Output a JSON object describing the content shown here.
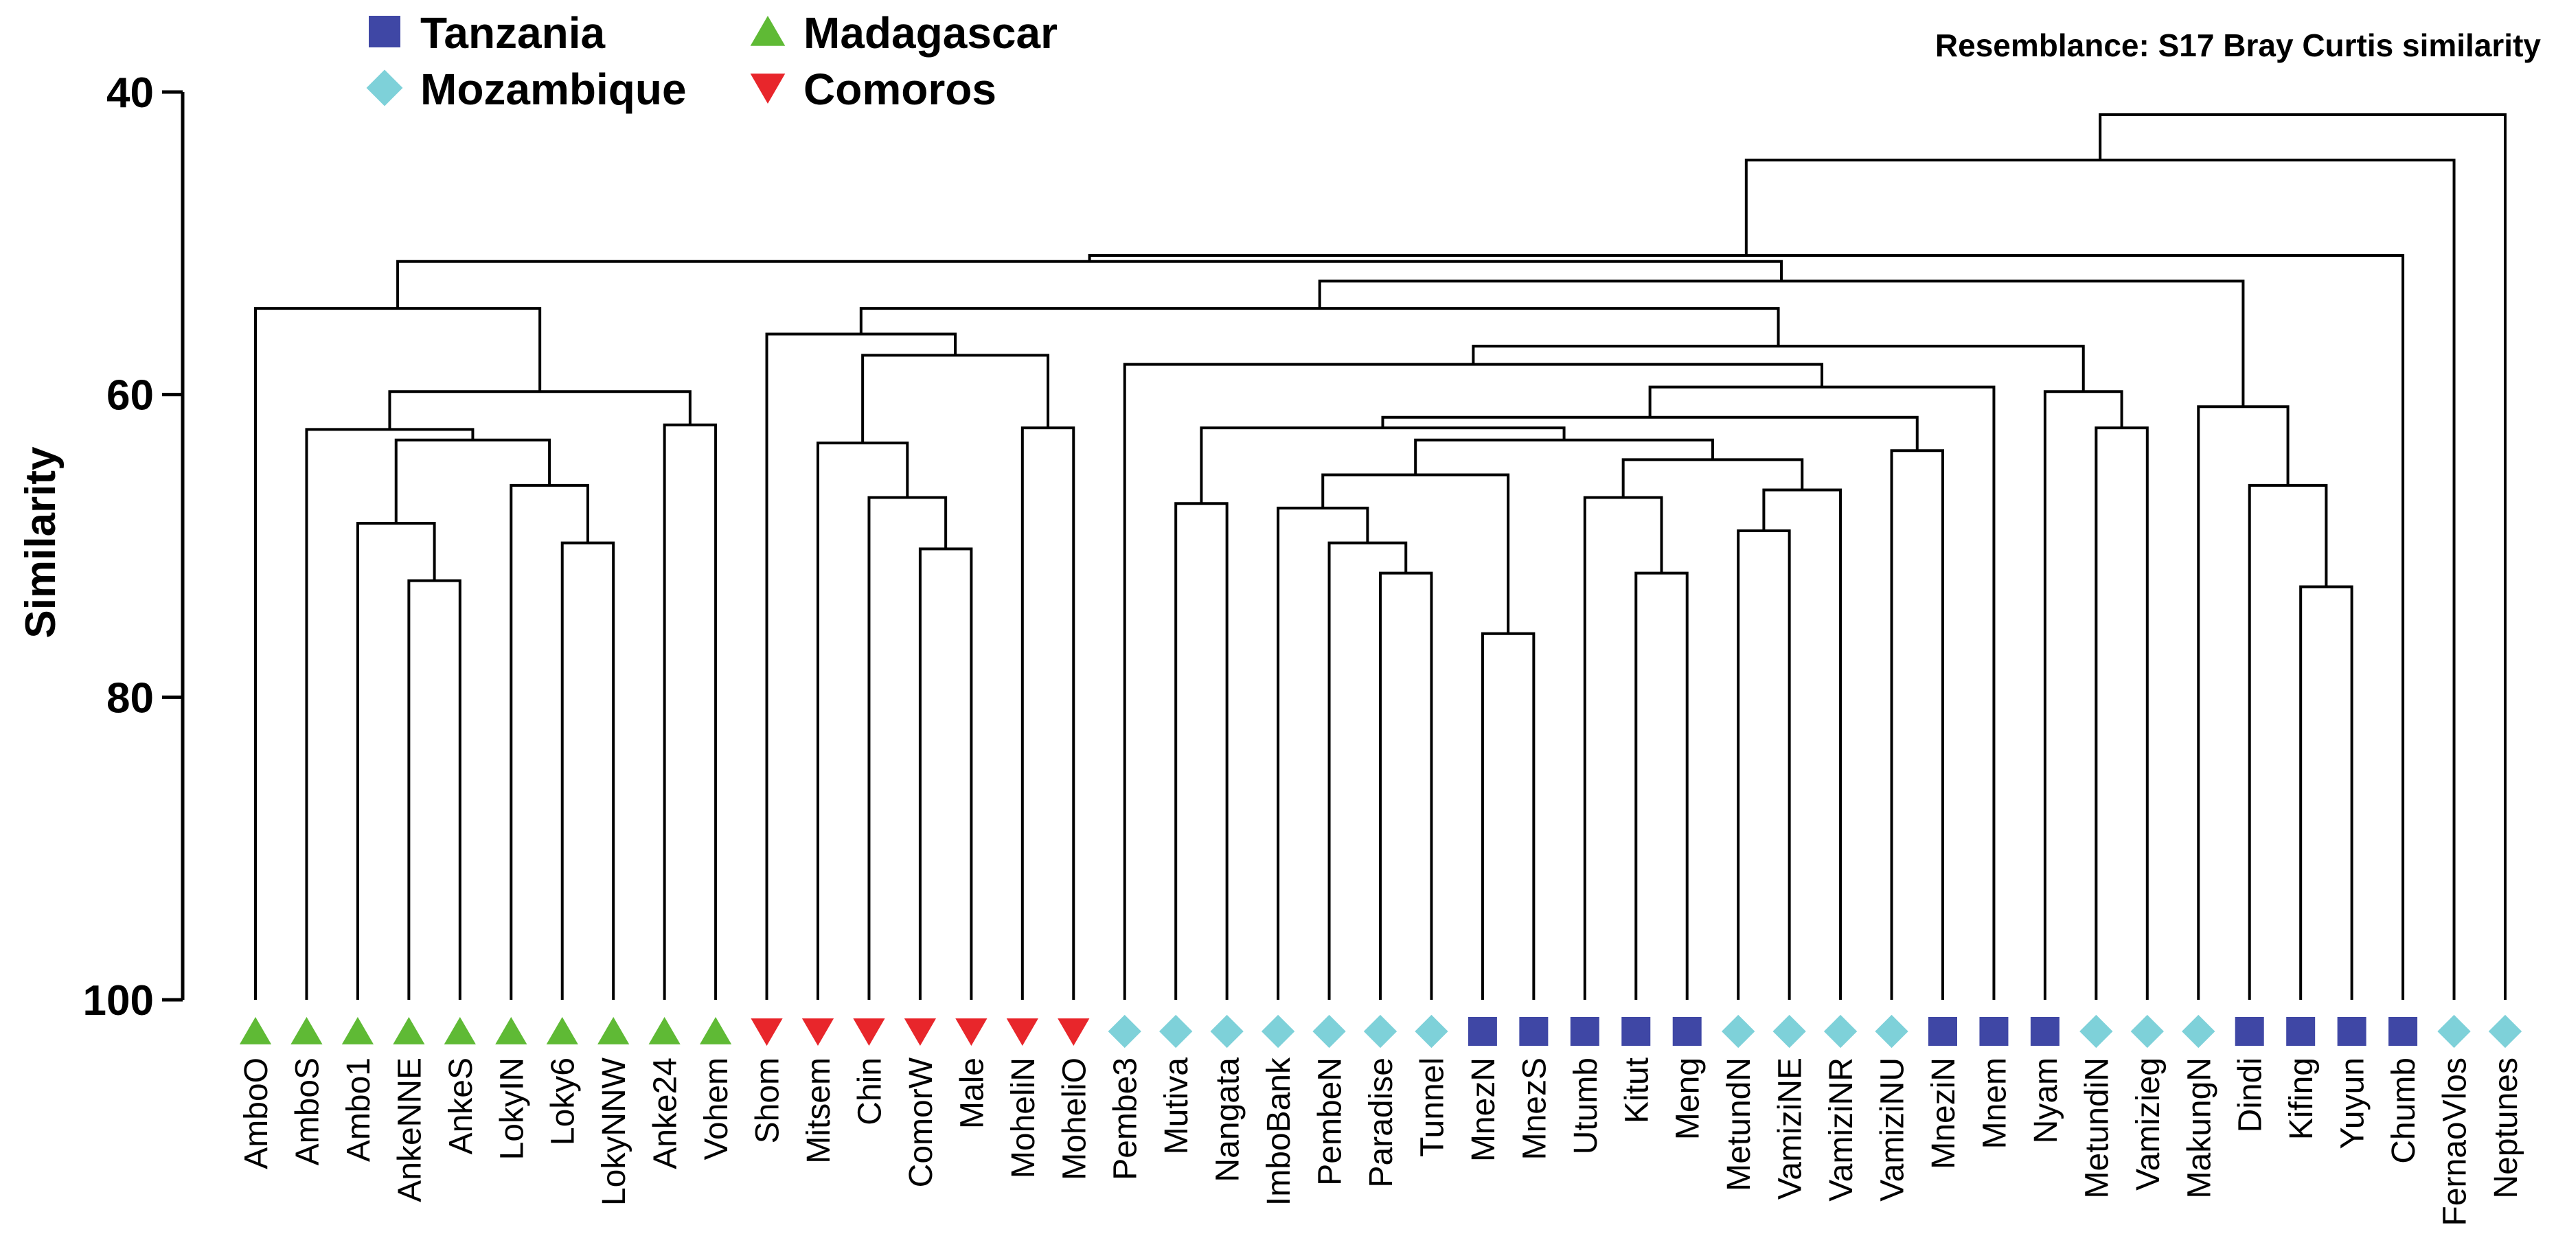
{
  "chart_data": {
    "type": "dendrogram",
    "resemblance": "Resemblance: S17 Bray Curtis similarity",
    "ylabel": "Similarity",
    "xlabel": "",
    "ylim": [
      40,
      100
    ],
    "y_ticks": [
      "40",
      "60",
      "80",
      "100"
    ],
    "legend": [
      {
        "label": "Tanzania",
        "shape": "square",
        "color": "#3f47a5"
      },
      {
        "label": "Mozambique",
        "shape": "diamond",
        "color": "#7ed1d9"
      },
      {
        "label": "Madagascar",
        "shape": "triangle-up",
        "color": "#5fba35"
      },
      {
        "label": "Comoros",
        "shape": "triangle-down",
        "color": "#e8262b"
      }
    ],
    "leaves": [
      {
        "name": "AmboO",
        "group": "Madagascar"
      },
      {
        "name": "AmboS",
        "group": "Madagascar"
      },
      {
        "name": "Ambo1",
        "group": "Madagascar"
      },
      {
        "name": "AnkeNNE",
        "group": "Madagascar"
      },
      {
        "name": "AnkeS",
        "group": "Madagascar"
      },
      {
        "name": "LokyIN",
        "group": "Madagascar"
      },
      {
        "name": "Loky6",
        "group": "Madagascar"
      },
      {
        "name": "LokyNNW",
        "group": "Madagascar"
      },
      {
        "name": "Anke24",
        "group": "Madagascar"
      },
      {
        "name": "Vohem",
        "group": "Madagascar"
      },
      {
        "name": "Shom",
        "group": "Comoros"
      },
      {
        "name": "Mitsem",
        "group": "Comoros"
      },
      {
        "name": "Chin",
        "group": "Comoros"
      },
      {
        "name": "ComorW",
        "group": "Comoros"
      },
      {
        "name": "Male",
        "group": "Comoros"
      },
      {
        "name": "MoheliN",
        "group": "Comoros"
      },
      {
        "name": "MoheliO",
        "group": "Comoros"
      },
      {
        "name": "Pembe3",
        "group": "Mozambique"
      },
      {
        "name": "Mutiva",
        "group": "Mozambique"
      },
      {
        "name": "Nangata",
        "group": "Mozambique"
      },
      {
        "name": "ImboBank",
        "group": "Mozambique"
      },
      {
        "name": "PembeN",
        "group": "Mozambique"
      },
      {
        "name": "Paradise",
        "group": "Mozambique"
      },
      {
        "name": "Tunnel",
        "group": "Mozambique"
      },
      {
        "name": "MnezN",
        "group": "Tanzania"
      },
      {
        "name": "MnezS",
        "group": "Tanzania"
      },
      {
        "name": "Utumb",
        "group": "Tanzania"
      },
      {
        "name": "Kitut",
        "group": "Tanzania"
      },
      {
        "name": "Meng",
        "group": "Tanzania"
      },
      {
        "name": "MetundN",
        "group": "Mozambique"
      },
      {
        "name": "VamiziNE",
        "group": "Mozambique"
      },
      {
        "name": "VamiziNR",
        "group": "Mozambique"
      },
      {
        "name": "VamiziNU",
        "group": "Mozambique"
      },
      {
        "name": "MneziN",
        "group": "Tanzania"
      },
      {
        "name": "Mnem",
        "group": "Tanzania"
      },
      {
        "name": "Nyam",
        "group": "Tanzania"
      },
      {
        "name": "MetundiN",
        "group": "Mozambique"
      },
      {
        "name": "Vamizieg",
        "group": "Mozambique"
      },
      {
        "name": "MakungN",
        "group": "Mozambique"
      },
      {
        "name": "Dindi",
        "group": "Tanzania"
      },
      {
        "name": "Kifing",
        "group": "Tanzania"
      },
      {
        "name": "Yuyun",
        "group": "Tanzania"
      },
      {
        "name": "Chumb",
        "group": "Tanzania"
      },
      {
        "name": "FernaoVlos",
        "group": "Mozambique"
      },
      {
        "name": "Neptunes",
        "group": "Mozambique"
      }
    ],
    "merges": [
      {
        "id": "n1",
        "a": 3,
        "b": 4,
        "sim": 72.3
      },
      {
        "id": "n2",
        "a": 2,
        "b": "n1",
        "sim": 68.5
      },
      {
        "id": "n3",
        "a": 6,
        "b": 7,
        "sim": 69.8
      },
      {
        "id": "n4",
        "a": 5,
        "b": "n3",
        "sim": 66.0
      },
      {
        "id": "n5",
        "a": "n2",
        "b": "n4",
        "sim": 63.0
      },
      {
        "id": "n6",
        "a": 1,
        "b": "n5",
        "sim": 62.3
      },
      {
        "id": "n7",
        "a": 8,
        "b": 9,
        "sim": 62.0
      },
      {
        "id": "n8",
        "a": "n6",
        "b": "n7",
        "sim": 59.8
      },
      {
        "id": "n9",
        "a": 0,
        "b": "n8",
        "sim": 54.3
      },
      {
        "id": "n10",
        "a": 13,
        "b": 14,
        "sim": 70.2
      },
      {
        "id": "n11",
        "a": 12,
        "b": "n10",
        "sim": 66.8
      },
      {
        "id": "n12",
        "a": 11,
        "b": "n11",
        "sim": 63.2
      },
      {
        "id": "n13",
        "a": 15,
        "b": 16,
        "sim": 62.2
      },
      {
        "id": "n14",
        "a": "n12",
        "b": "n13",
        "sim": 57.4
      },
      {
        "id": "n15",
        "a": 10,
        "b": "n14",
        "sim": 56.0
      },
      {
        "id": "n16",
        "a": 18,
        "b": 19,
        "sim": 67.2
      },
      {
        "id": "n17",
        "a": 22,
        "b": 23,
        "sim": 71.8
      },
      {
        "id": "n18",
        "a": 21,
        "b": "n17",
        "sim": 69.8
      },
      {
        "id": "n19",
        "a": 20,
        "b": "n18",
        "sim": 67.5
      },
      {
        "id": "n20",
        "a": 24,
        "b": 25,
        "sim": 75.8
      },
      {
        "id": "n21",
        "a": "n19",
        "b": "n20",
        "sim": 65.3
      },
      {
        "id": "n22",
        "a": 27,
        "b": 28,
        "sim": 71.8
      },
      {
        "id": "n23",
        "a": 26,
        "b": "n22",
        "sim": 66.8
      },
      {
        "id": "n24",
        "a": 29,
        "b": 30,
        "sim": 69.0
      },
      {
        "id": "n25",
        "a": "n24",
        "b": 31,
        "sim": 66.3
      },
      {
        "id": "n26",
        "a": "n23",
        "b": "n25",
        "sim": 64.3
      },
      {
        "id": "n27",
        "a": "n21",
        "b": "n26",
        "sim": 63.0
      },
      {
        "id": "n28",
        "a": "n16",
        "b": "n27",
        "sim": 62.2
      },
      {
        "id": "n29",
        "a": 32,
        "b": 33,
        "sim": 63.7
      },
      {
        "id": "n30",
        "a": "n28",
        "b": "n29",
        "sim": 61.5
      },
      {
        "id": "n31",
        "a": "n30",
        "b": 34,
        "sim": 59.5
      },
      {
        "id": "n32",
        "a": 17,
        "b": "n31",
        "sim": 58.0
      },
      {
        "id": "n33",
        "a": 36,
        "b": 37,
        "sim": 62.2
      },
      {
        "id": "n34",
        "a": 35,
        "b": "n33",
        "sim": 59.8
      },
      {
        "id": "n35",
        "a": "n32",
        "b": "n34",
        "sim": 56.8
      },
      {
        "id": "n36",
        "a": "n15",
        "b": "n35",
        "sim": 54.3
      },
      {
        "id": "n37",
        "a": 40,
        "b": 41,
        "sim": 72.7
      },
      {
        "id": "n38",
        "a": 39,
        "b": "n37",
        "sim": 66.0
      },
      {
        "id": "n39",
        "a": 38,
        "b": "n38",
        "sim": 60.8
      },
      {
        "id": "n40",
        "a": "n36",
        "b": "n39",
        "sim": 52.5
      },
      {
        "id": "n41",
        "a": "n9",
        "b": "n40",
        "sim": 51.2
      },
      {
        "id": "n42",
        "a": "n41",
        "b": 42,
        "sim": 50.8
      },
      {
        "id": "n43",
        "a": "n42",
        "b": 43,
        "sim": 44.5
      },
      {
        "id": "n44",
        "a": "n43",
        "b": 44,
        "sim": 41.5
      }
    ]
  }
}
